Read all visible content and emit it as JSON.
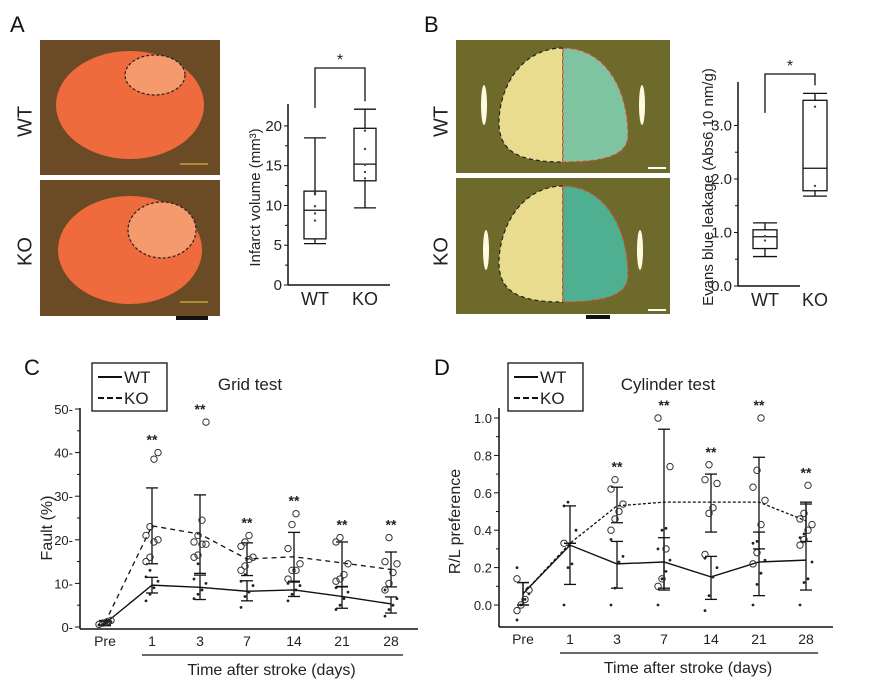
{
  "panels": {
    "A": {
      "letter": "A",
      "row_labels": [
        "WT",
        "KO"
      ]
    },
    "B": {
      "letter": "B",
      "row_labels": [
        "WT",
        "KO"
      ]
    },
    "C": {
      "letter": "C"
    },
    "D": {
      "letter": "D"
    }
  },
  "colors": {
    "tissue_bg": "#6b4a26",
    "tissue": "#f0673a",
    "brain_bg": "#6e6a2c",
    "brain": "#e9dc8f",
    "evans_blue": "#3aa78a",
    "outline_red": "#e0452a"
  },
  "chart_data": [
    {
      "id": "A",
      "type": "box",
      "title": "",
      "xlabel": "",
      "ylabel": "Infarct volume (mm³)",
      "categories": [
        "WT",
        "KO"
      ],
      "ylim": [
        0,
        22
      ],
      "yticks": [
        0,
        5,
        10,
        15,
        20
      ],
      "boxes": [
        {
          "name": "WT",
          "min": 5.2,
          "q1": 5.8,
          "median": 9.4,
          "q3": 11.8,
          "max": 18.5,
          "points": [
            5.7,
            8.1,
            9.0,
            9.9,
            11.4,
            11.6
          ]
        },
        {
          "name": "KO",
          "min": 9.7,
          "q1": 13.1,
          "median": 15.2,
          "q3": 19.7,
          "max": 22.1,
          "points": [
            13.4,
            14.2,
            15.1,
            17.1,
            19.4
          ]
        }
      ],
      "significance": {
        "between": [
          "WT",
          "KO"
        ],
        "label": "*"
      }
    },
    {
      "id": "B",
      "type": "box",
      "title": "",
      "xlabel": "",
      "ylabel": "Evans  blue leakage (Abs6 10 nm/g)",
      "categories": [
        "WT",
        "KO"
      ],
      "ylim": [
        0,
        3.7
      ],
      "yticks": [
        "0.0",
        "1.0",
        "2.0",
        "3.0"
      ],
      "boxes": [
        {
          "name": "WT",
          "min": 0.55,
          "q1": 0.7,
          "median": 0.92,
          "q3": 1.05,
          "max": 1.18,
          "points": [
            0.85,
            0.93
          ]
        },
        {
          "name": "KO",
          "min": 1.68,
          "q1": 1.78,
          "median": 2.2,
          "q3": 3.47,
          "max": 3.6,
          "points": [
            1.87,
            3.35
          ]
        }
      ],
      "significance": {
        "between": [
          "WT",
          "KO"
        ],
        "label": "*"
      }
    },
    {
      "id": "C",
      "type": "line",
      "title": "Grid test",
      "xlabel": "Time after stroke (days)",
      "ylabel": "Fault (%)",
      "categories": [
        "Pre",
        "1",
        "3",
        "7",
        "14",
        "21",
        "28"
      ],
      "ylim": [
        0,
        50
      ],
      "yticks": [
        0,
        10,
        20,
        30,
        40,
        50
      ],
      "legend": {
        "position": "top-left",
        "entries": [
          "WT",
          "KO"
        ]
      },
      "series": [
        {
          "name": "WT",
          "style": "solid",
          "values": [
            0.8,
            9.6,
            9.1,
            8.2,
            8.5,
            7.0,
            5.3
          ],
          "err_low": [
            0.3,
            7.8,
            6.3,
            6.0,
            7.0,
            4.3,
            3.2
          ],
          "err_high": [
            1.3,
            11.4,
            11.9,
            10.6,
            10.3,
            9.3,
            6.9
          ],
          "points": [
            [
              0.5,
              0.7,
              1.0,
              1.2
            ],
            [
              6.0,
              7.5,
              9.0,
              10.5,
              11.5,
              13.0
            ],
            [
              6.5,
              7.5,
              8.5,
              10.0,
              11.0,
              14.5
            ],
            [
              4.5,
              7.0,
              8.0,
              9.5,
              10.5,
              12.0
            ],
            [
              6.0,
              7.5,
              8.5,
              9.5,
              10.0
            ],
            [
              4.0,
              5.0,
              6.5,
              8.0,
              9.0
            ],
            [
              2.5,
              4.0,
              5.0,
              6.5,
              8.5
            ]
          ]
        },
        {
          "name": "KO",
          "style": "dashed",
          "values": [
            1.0,
            23.2,
            21.3,
            15.6,
            16.1,
            14.7,
            13.2
          ],
          "err_low": [
            0.5,
            14.5,
            12.3,
            11.8,
            10.5,
            9.2,
            9.2
          ],
          "err_high": [
            1.5,
            31.9,
            30.3,
            19.3,
            21.7,
            19.5,
            17.2
          ],
          "points": [
            [
              0.6,
              0.9,
              1.2,
              1.5
            ],
            [
              15.0,
              16.0,
              19.5,
              20.0,
              21.0,
              23.0,
              38.5,
              40.0
            ],
            [
              16.0,
              16.5,
              19.0,
              19.0,
              19.5,
              21.0,
              24.5,
              47.0
            ],
            [
              13.0,
              14.0,
              15.5,
              16.0,
              18.5,
              19.5,
              21.0
            ],
            [
              11.0,
              13.0,
              13.0,
              14.5,
              18.0,
              23.5,
              26.0
            ],
            [
              10.5,
              11.0,
              12.0,
              14.5,
              19.5,
              20.5
            ],
            [
              8.5,
              10.0,
              12.5,
              14.5,
              15.0,
              20.5
            ]
          ]
        }
      ],
      "annotations": [
        {
          "x": "1",
          "label": "**"
        },
        {
          "x": "3",
          "label": "**"
        },
        {
          "x": "7",
          "label": "**"
        },
        {
          "x": "14",
          "label": "**"
        },
        {
          "x": "21",
          "label": "**"
        },
        {
          "x": "28",
          "label": "**"
        }
      ]
    },
    {
      "id": "D",
      "type": "line",
      "title": "Cylinder test",
      "xlabel": "Time after stroke (days)",
      "ylabel": "R/L preference",
      "categories": [
        "Pre",
        "1",
        "3",
        "7",
        "14",
        "21",
        "28"
      ],
      "ylim": [
        -0.1,
        1.05
      ],
      "yticks": [
        "0.0",
        "0.2",
        "0.4",
        "0.6",
        "0.8",
        "1.0"
      ],
      "legend": {
        "position": "top-left",
        "entries": [
          "WT",
          "KO"
        ]
      },
      "series": [
        {
          "name": "WT",
          "style": "solid",
          "values": [
            0.06,
            0.32,
            0.22,
            0.23,
            0.15,
            0.23,
            0.24
          ],
          "err_low": [
            0.0,
            0.11,
            0.09,
            0.09,
            0.03,
            0.05,
            0.08
          ],
          "err_high": [
            0.12,
            0.53,
            0.34,
            0.36,
            0.26,
            0.39,
            0.55
          ],
          "points": [
            [
              -0.08,
              0.0,
              0.03,
              0.06,
              0.2
            ],
            [
              0.0,
              0.2,
              0.22,
              0.4,
              0.53,
              0.55
            ],
            [
              0.0,
              0.09,
              0.23,
              0.26,
              0.35
            ],
            [
              0.0,
              0.14,
              0.18,
              0.24,
              0.3,
              0.4,
              0.41
            ],
            [
              -0.03,
              0.05,
              0.15,
              0.2,
              0.25
            ],
            [
              0.0,
              0.11,
              0.17,
              0.24,
              0.33,
              0.34
            ],
            [
              0.0,
              0.12,
              0.14,
              0.23,
              0.36,
              0.38
            ]
          ]
        },
        {
          "name": "KO",
          "style": "dotted",
          "values": [
            0.06,
            0.33,
            0.53,
            0.55,
            0.55,
            0.55,
            0.45
          ],
          "err_low": [
            0.0,
            0.33,
            0.44,
            0.08,
            0.39,
            0.3,
            0.34
          ],
          "err_high": [
            0.12,
            0.33,
            0.63,
            0.94,
            0.7,
            0.79,
            0.54
          ],
          "points": [
            [
              -0.03,
              0.0,
              0.03,
              0.08,
              0.14
            ],
            [
              0.33
            ],
            [
              0.4,
              0.46,
              0.5,
              0.54,
              0.62,
              0.67
            ],
            [
              0.1,
              0.14,
              0.3,
              0.74,
              1.0
            ],
            [
              0.27,
              0.49,
              0.52,
              0.65,
              0.67,
              0.75
            ],
            [
              0.22,
              0.28,
              0.43,
              0.56,
              0.63,
              0.72,
              1.0
            ],
            [
              0.32,
              0.35,
              0.4,
              0.43,
              0.46,
              0.49,
              0.64
            ]
          ]
        }
      ],
      "annotations": [
        {
          "x": "3",
          "label": "**"
        },
        {
          "x": "7",
          "label": "**"
        },
        {
          "x": "14",
          "label": "**"
        },
        {
          "x": "21",
          "label": "**"
        },
        {
          "x": "28",
          "label": "**"
        }
      ]
    }
  ]
}
